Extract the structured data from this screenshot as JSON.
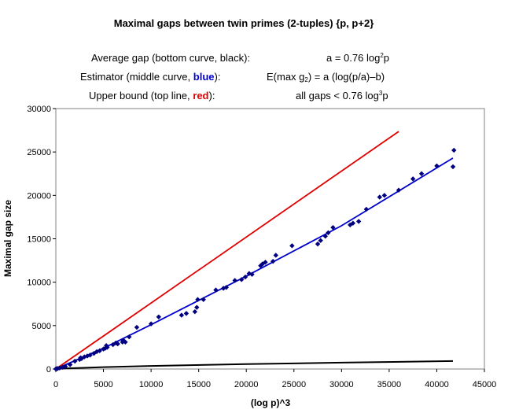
{
  "chart_data": {
    "type": "scatter",
    "title": "Maximal gaps between twin primes (2-tuples) {p, p+2}",
    "legend_rows": [
      {
        "label_pre": "Average gap (bottom curve, black):",
        "formula_pre": "a = 0.76 log",
        "formula_sup": "2",
        "formula_post": "p"
      },
      {
        "label_pre": "Estimator (middle curve, ",
        "label_em": "blue",
        "label_post": "):",
        "formula_pre": "E(max g",
        "formula_sub": "2",
        "formula_post": ") = a (log(p/a)–b)"
      },
      {
        "label_pre": "Upper bound (top line, ",
        "label_em": "red",
        "label_post": "):",
        "formula_pre": "all gaps < 0.76 log",
        "formula_sup": "3",
        "formula_post": "p"
      }
    ],
    "xlabel": "(log p)^3",
    "ylabel": "Maximal gap size",
    "xlim": [
      0,
      45000
    ],
    "ylim": [
      0,
      30000
    ],
    "xticks": [
      0,
      5000,
      10000,
      15000,
      20000,
      25000,
      30000,
      35000,
      40000,
      45000
    ],
    "yticks": [
      0,
      5000,
      10000,
      15000,
      20000,
      25000,
      30000
    ],
    "grid": "none",
    "colors": {
      "points": "#000080",
      "estimator": "#0000cc",
      "upper": "#e00000",
      "average": "#000000"
    },
    "series": [
      {
        "name": "Maximal gaps",
        "kind": "points",
        "x": [
          5,
          30,
          80,
          200,
          400,
          700,
          1000,
          1500,
          2000,
          2500,
          2600,
          2700,
          3000,
          3300,
          3600,
          4000,
          4300,
          4600,
          5000,
          5200,
          5300,
          5400,
          6000,
          6300,
          6500,
          7000,
          7100,
          7300,
          7700,
          8500,
          10000,
          10800,
          13200,
          13700,
          14600,
          14800,
          14900,
          15500,
          16800,
          17600,
          17900,
          18800,
          19500,
          19900,
          20300,
          20600,
          21500,
          21700,
          22000,
          22800,
          23100,
          24800,
          27500,
          27800,
          28300,
          28600,
          29100,
          30900,
          31200,
          31800,
          32600,
          34000,
          34500,
          36000,
          37500,
          38400,
          40000,
          41700,
          41800
        ],
        "y": [
          6,
          14,
          30,
          60,
          120,
          200,
          300,
          500,
          900,
          1100,
          1300,
          1200,
          1400,
          1500,
          1600,
          1800,
          2000,
          2100,
          2300,
          2400,
          2700,
          2500,
          2800,
          3000,
          2900,
          3100,
          3300,
          3100,
          3700,
          4800,
          5200,
          6000,
          6200,
          6400,
          6600,
          7100,
          8000,
          8000,
          9100,
          9300,
          9400,
          10200,
          10300,
          10600,
          11000,
          10900,
          11900,
          12100,
          12300,
          12400,
          13100,
          14200,
          14400,
          14800,
          15300,
          15700,
          16300,
          16600,
          16800,
          17000,
          18400,
          19800,
          20000,
          20600,
          21900,
          22500,
          23400,
          23300,
          25200
        ]
      },
      {
        "name": "Estimator",
        "kind": "line",
        "x": [
          0,
          5000,
          10000,
          20000,
          30000,
          41700
        ],
        "y": [
          0,
          2400,
          5100,
          10700,
          16500,
          24300
        ]
      },
      {
        "name": "Upper bound",
        "kind": "line",
        "x": [
          0,
          36000
        ],
        "y": [
          0,
          27360
        ]
      },
      {
        "name": "Average gap",
        "kind": "line",
        "x": [
          0,
          1000,
          5000,
          10000,
          20000,
          30000,
          41700
        ],
        "y": [
          0,
          76,
          222,
          352,
          559,
          733,
          911
        ]
      }
    ]
  }
}
